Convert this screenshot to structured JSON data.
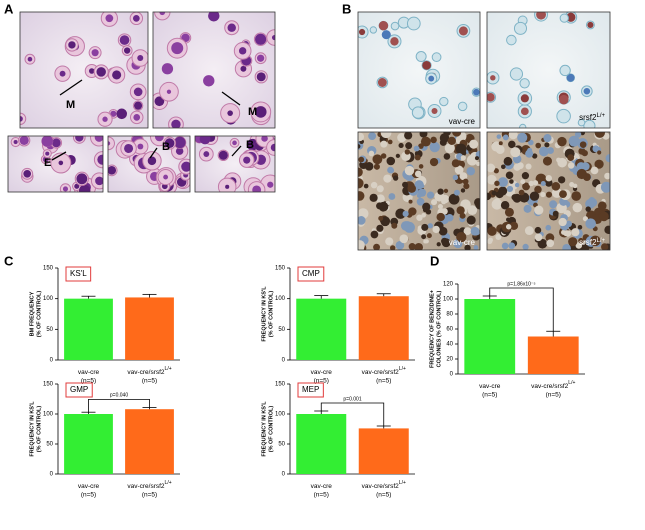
{
  "panel_labels": [
    "A",
    "B",
    "C",
    "D"
  ],
  "micrographs": {
    "A": [
      "M",
      "M",
      "E",
      "B",
      "B"
    ],
    "B": [
      {
        "text": "vav-cre"
      },
      {
        "text": "srsf2",
        "sup": "L/+"
      },
      {
        "text": "vav-cre"
      },
      {
        "text": "srsf2",
        "sup": "L/+"
      }
    ]
  },
  "chart_data": [
    {
      "type": "bar",
      "title": "KS'L",
      "ylabel": [
        "BM FREQUENCY",
        "(% OF CONTROL)"
      ],
      "categories": [
        "vav-cre",
        "vav-cre/srsf2"
      ],
      "category_superscripts": [
        null,
        "L/+"
      ],
      "n_labels": [
        "(n=5)",
        "(n=5)"
      ],
      "values": [
        100,
        102
      ],
      "errors": [
        4,
        5
      ],
      "colors": [
        "#33ee33",
        "#ff6a1a"
      ],
      "ylim": [
        0,
        150
      ],
      "yticks": [
        0,
        50,
        100,
        150
      ]
    },
    {
      "type": "bar",
      "title": "CMP",
      "ylabel": [
        "FREQUENCY IN KS'L",
        "(% OF CONTROL)"
      ],
      "categories": [
        "vav-cre",
        "vav-cre/srsf2"
      ],
      "category_superscripts": [
        null,
        "L/+"
      ],
      "n_labels": [
        "(n=5)",
        "(n=5)"
      ],
      "values": [
        100,
        104
      ],
      "errors": [
        5,
        4
      ],
      "colors": [
        "#33ee33",
        "#ff6a1a"
      ],
      "ylim": [
        0,
        150
      ],
      "yticks": [
        0,
        50,
        100,
        150
      ]
    },
    {
      "type": "bar",
      "title": "GMP",
      "ylabel": [
        "FREQUENCY IN KS'L",
        "(% OF CONTROL)"
      ],
      "categories": [
        "vav-cre",
        "vav-cre/srsf2"
      ],
      "category_superscripts": [
        null,
        "L/+"
      ],
      "n_labels": [
        "(n=5)",
        "(n=5)"
      ],
      "values": [
        100,
        108
      ],
      "errors": [
        3,
        3
      ],
      "colors": [
        "#33ee33",
        "#ff6a1a"
      ],
      "ylim": [
        0,
        150
      ],
      "yticks": [
        0,
        50,
        100,
        150
      ],
      "annotation": "p=0.040"
    },
    {
      "type": "bar",
      "title": "MEP",
      "ylabel": [
        "FREQUENCY IN KS'L",
        "(% OF CONTROL)"
      ],
      "categories": [
        "vav-cre",
        "vav-cre/srsf2"
      ],
      "category_superscripts": [
        null,
        "L/+"
      ],
      "n_labels": [
        "(n=5)",
        "(n=5)"
      ],
      "values": [
        100,
        76
      ],
      "errors": [
        5,
        4
      ],
      "colors": [
        "#33ee33",
        "#ff6a1a"
      ],
      "ylim": [
        0,
        150
      ],
      "yticks": [
        0,
        50,
        100,
        150
      ],
      "annotation": "p=0.001"
    },
    {
      "type": "bar",
      "ylabel": [
        "FREQUENCY OF BENZIDINE+",
        "COLONIES (% OF CONTROL)"
      ],
      "categories": [
        "vav-cre",
        "vav-cre/srsf2"
      ],
      "category_superscripts": [
        null,
        "L/+"
      ],
      "n_labels": [
        "(n=5)",
        "(n=5)"
      ],
      "values": [
        100,
        50
      ],
      "errors": [
        4,
        7
      ],
      "colors": [
        "#33ee33",
        "#ff6a1a"
      ],
      "ylim": [
        0,
        120
      ],
      "yticks": [
        0,
        20,
        40,
        60,
        80,
        100,
        120
      ],
      "annotation": "p=1.86x10⁻⁵"
    }
  ]
}
